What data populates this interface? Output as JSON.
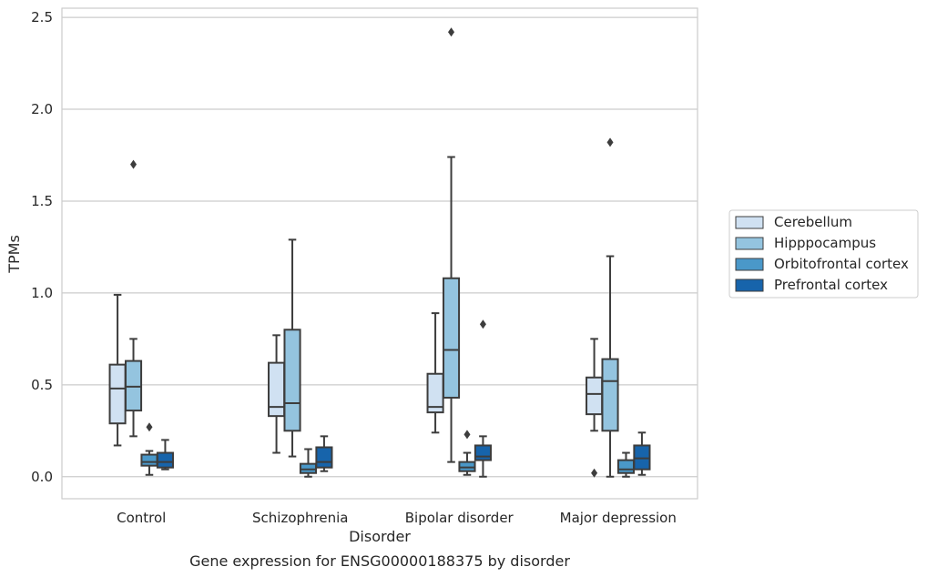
{
  "chart_data": {
    "type": "box",
    "xlabel": "Disorder",
    "ylabel": "TPMs",
    "caption": "Gene expression for ENSG00000188375 by disorder",
    "ylim": [
      -0.12,
      2.55
    ],
    "yticks": [
      0.0,
      0.5,
      1.0,
      1.5,
      2.0,
      2.5
    ],
    "ytick_labels": [
      "0.0",
      "0.5",
      "1.0",
      "1.5",
      "2.0",
      "2.5"
    ],
    "grid": true,
    "legend_position": "right",
    "categories": [
      "Control",
      "Schizophrenia",
      "Bipolar disorder",
      "Major depression"
    ],
    "series": [
      {
        "name": "Cerebellum",
        "color": "#d0e1f2",
        "boxes": [
          {
            "whislo": 0.17,
            "q1": 0.29,
            "med": 0.48,
            "q3": 0.61,
            "whishi": 0.99,
            "fliers": []
          },
          {
            "whislo": 0.13,
            "q1": 0.33,
            "med": 0.38,
            "q3": 0.62,
            "whishi": 0.77,
            "fliers": []
          },
          {
            "whislo": 0.24,
            "q1": 0.35,
            "med": 0.38,
            "q3": 0.56,
            "whishi": 0.89,
            "fliers": []
          },
          {
            "whislo": 0.25,
            "q1": 0.34,
            "med": 0.45,
            "q3": 0.54,
            "whishi": 0.75,
            "fliers": [
              0.02
            ]
          }
        ]
      },
      {
        "name": "Hipppocampus",
        "color": "#94c4df",
        "boxes": [
          {
            "whislo": 0.22,
            "q1": 0.36,
            "med": 0.49,
            "q3": 0.63,
            "whishi": 0.75,
            "fliers": [
              1.7
            ]
          },
          {
            "whislo": 0.11,
            "q1": 0.25,
            "med": 0.4,
            "q3": 0.8,
            "whishi": 1.29,
            "fliers": []
          },
          {
            "whislo": 0.08,
            "q1": 0.43,
            "med": 0.69,
            "q3": 1.08,
            "whishi": 1.74,
            "fliers": [
              2.42
            ]
          },
          {
            "whislo": 0.0,
            "q1": 0.25,
            "med": 0.52,
            "q3": 0.64,
            "whishi": 1.2,
            "fliers": [
              1.82
            ]
          }
        ]
      },
      {
        "name": "Orbitofrontal cortex",
        "color": "#4a98c9",
        "boxes": [
          {
            "whislo": 0.01,
            "q1": 0.06,
            "med": 0.08,
            "q3": 0.12,
            "whishi": 0.14,
            "fliers": [
              0.27
            ]
          },
          {
            "whislo": 0.0,
            "q1": 0.02,
            "med": 0.04,
            "q3": 0.07,
            "whishi": 0.15,
            "fliers": []
          },
          {
            "whislo": 0.01,
            "q1": 0.03,
            "med": 0.05,
            "q3": 0.08,
            "whishi": 0.13,
            "fliers": [
              0.23
            ]
          },
          {
            "whislo": 0.0,
            "q1": 0.02,
            "med": 0.04,
            "q3": 0.09,
            "whishi": 0.13,
            "fliers": []
          }
        ]
      },
      {
        "name": "Prefrontal cortex",
        "color": "#1764ab",
        "boxes": [
          {
            "whislo": 0.04,
            "q1": 0.05,
            "med": 0.08,
            "q3": 0.13,
            "whishi": 0.2,
            "fliers": []
          },
          {
            "whislo": 0.03,
            "q1": 0.05,
            "med": 0.08,
            "q3": 0.16,
            "whishi": 0.22,
            "fliers": []
          },
          {
            "whislo": 0.0,
            "q1": 0.09,
            "med": 0.11,
            "q3": 0.17,
            "whishi": 0.22,
            "fliers": [
              0.83
            ]
          },
          {
            "whislo": 0.01,
            "q1": 0.04,
            "med": 0.1,
            "q3": 0.17,
            "whishi": 0.24,
            "fliers": []
          }
        ]
      }
    ]
  }
}
